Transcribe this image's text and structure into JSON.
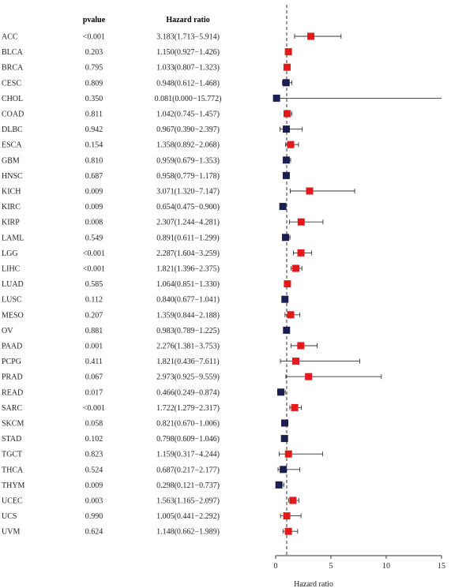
{
  "chart_data": {
    "type": "forest",
    "columns": {
      "pvalue": "pvalue",
      "hr": "Hazard ratio"
    },
    "xlabel": "Hazard ratio",
    "xlim": [
      0,
      15
    ],
    "xticks": [
      0,
      5,
      10,
      15
    ],
    "reference_line": 1,
    "colors": {
      "risk": "#e31a1c",
      "protective": "#1a1f4f"
    },
    "rows": [
      {
        "name": "ACC",
        "p": "<0.001",
        "hr_text": "3.183(1.713−5.914)",
        "hr": 3.183,
        "lo": 1.713,
        "hi": 5.914
      },
      {
        "name": "BLCA",
        "p": "0.203",
        "hr_text": "1.150(0.927−1.426)",
        "hr": 1.15,
        "lo": 0.927,
        "hi": 1.426
      },
      {
        "name": "BRCA",
        "p": "0.795",
        "hr_text": "1.033(0.807−1.323)",
        "hr": 1.033,
        "lo": 0.807,
        "hi": 1.323
      },
      {
        "name": "CESC",
        "p": "0.809",
        "hr_text": "0.948(0.612−1.468)",
        "hr": 0.948,
        "lo": 0.612,
        "hi": 1.468
      },
      {
        "name": "CHOL",
        "p": "0.350",
        "hr_text": "0.081(0.000−15.772)",
        "hr": 0.081,
        "lo": 0.0,
        "hi": 15.772
      },
      {
        "name": "COAD",
        "p": "0.811",
        "hr_text": "1.042(0.745−1.457)",
        "hr": 1.042,
        "lo": 0.745,
        "hi": 1.457
      },
      {
        "name": "DLBC",
        "p": "0.942",
        "hr_text": "0.967(0.390−2.397)",
        "hr": 0.967,
        "lo": 0.39,
        "hi": 2.397
      },
      {
        "name": "ESCA",
        "p": "0.154",
        "hr_text": "1.358(0.892−2.068)",
        "hr": 1.358,
        "lo": 0.892,
        "hi": 2.068
      },
      {
        "name": "GBM",
        "p": "0.810",
        "hr_text": "0.959(0.679−1.353)",
        "hr": 0.959,
        "lo": 0.679,
        "hi": 1.353
      },
      {
        "name": "HNSC",
        "p": "0.687",
        "hr_text": "0.958(0.779−1.178)",
        "hr": 0.958,
        "lo": 0.779,
        "hi": 1.178
      },
      {
        "name": "KICH",
        "p": "0.009",
        "hr_text": "3.071(1.320−7.147)",
        "hr": 3.071,
        "lo": 1.32,
        "hi": 7.147
      },
      {
        "name": "KIRC",
        "p": "0.009",
        "hr_text": "0.654(0.475−0.900)",
        "hr": 0.654,
        "lo": 0.475,
        "hi": 0.9
      },
      {
        "name": "KIRP",
        "p": "0.008",
        "hr_text": "2.307(1.244−4.281)",
        "hr": 2.307,
        "lo": 1.244,
        "hi": 4.281
      },
      {
        "name": "LAML",
        "p": "0.549",
        "hr_text": "0.891(0.611−1.299)",
        "hr": 0.891,
        "lo": 0.611,
        "hi": 1.299
      },
      {
        "name": "LGG",
        "p": "<0.001",
        "hr_text": "2.287(1.604−3.259)",
        "hr": 2.287,
        "lo": 1.604,
        "hi": 3.259
      },
      {
        "name": "LIHC",
        "p": "<0.001",
        "hr_text": "1.821(1.396−2.375)",
        "hr": 1.821,
        "lo": 1.396,
        "hi": 2.375
      },
      {
        "name": "LUAD",
        "p": "0.585",
        "hr_text": "1.064(0.851−1.330)",
        "hr": 1.064,
        "lo": 0.851,
        "hi": 1.33
      },
      {
        "name": "LUSC",
        "p": "0.112",
        "hr_text": "0.840(0.677−1.041)",
        "hr": 0.84,
        "lo": 0.677,
        "hi": 1.041
      },
      {
        "name": "MESO",
        "p": "0.207",
        "hr_text": "1.359(0.844−2.188)",
        "hr": 1.359,
        "lo": 0.844,
        "hi": 2.188
      },
      {
        "name": "OV",
        "p": "0.881",
        "hr_text": "0.983(0.789−1.225)",
        "hr": 0.983,
        "lo": 0.789,
        "hi": 1.225
      },
      {
        "name": "PAAD",
        "p": "0.001",
        "hr_text": "2.276(1.381−3.753)",
        "hr": 2.276,
        "lo": 1.381,
        "hi": 3.753
      },
      {
        "name": "PCPG",
        "p": "0.411",
        "hr_text": "1.821(0.436−7.611)",
        "hr": 1.821,
        "lo": 0.436,
        "hi": 7.611
      },
      {
        "name": "PRAD",
        "p": "0.067",
        "hr_text": "2.973(0.925−9.559)",
        "hr": 2.973,
        "lo": 0.925,
        "hi": 9.559
      },
      {
        "name": "READ",
        "p": "0.017",
        "hr_text": "0.466(0.249−0.874)",
        "hr": 0.466,
        "lo": 0.249,
        "hi": 0.874
      },
      {
        "name": "SARC",
        "p": "<0.001",
        "hr_text": "1.722(1.279−2.317)",
        "hr": 1.722,
        "lo": 1.279,
        "hi": 2.317
      },
      {
        "name": "SKCM",
        "p": "0.058",
        "hr_text": "0.821(0.670−1.006)",
        "hr": 0.821,
        "lo": 0.67,
        "hi": 1.006
      },
      {
        "name": "STAD",
        "p": "0.102",
        "hr_text": "0.798(0.609−1.046)",
        "hr": 0.798,
        "lo": 0.609,
        "hi": 1.046
      },
      {
        "name": "TGCT",
        "p": "0.823",
        "hr_text": "1.159(0.317−4.244)",
        "hr": 1.159,
        "lo": 0.317,
        "hi": 4.244
      },
      {
        "name": "THCA",
        "p": "0.524",
        "hr_text": "0.687(0.217−2.177)",
        "hr": 0.687,
        "lo": 0.217,
        "hi": 2.177
      },
      {
        "name": "THYM",
        "p": "0.009",
        "hr_text": "0.298(0.121−0.737)",
        "hr": 0.298,
        "lo": 0.121,
        "hi": 0.737
      },
      {
        "name": "UCEC",
        "p": "0.003",
        "hr_text": "1.563(1.165−2.097)",
        "hr": 1.563,
        "lo": 1.165,
        "hi": 2.097
      },
      {
        "name": "UCS",
        "p": "0.990",
        "hr_text": "1.005(0.441−2.292)",
        "hr": 1.005,
        "lo": 0.441,
        "hi": 2.292
      },
      {
        "name": "UVM",
        "p": "0.624",
        "hr_text": "1.148(0.662−1.989)",
        "hr": 1.148,
        "lo": 0.662,
        "hi": 1.989
      }
    ]
  }
}
